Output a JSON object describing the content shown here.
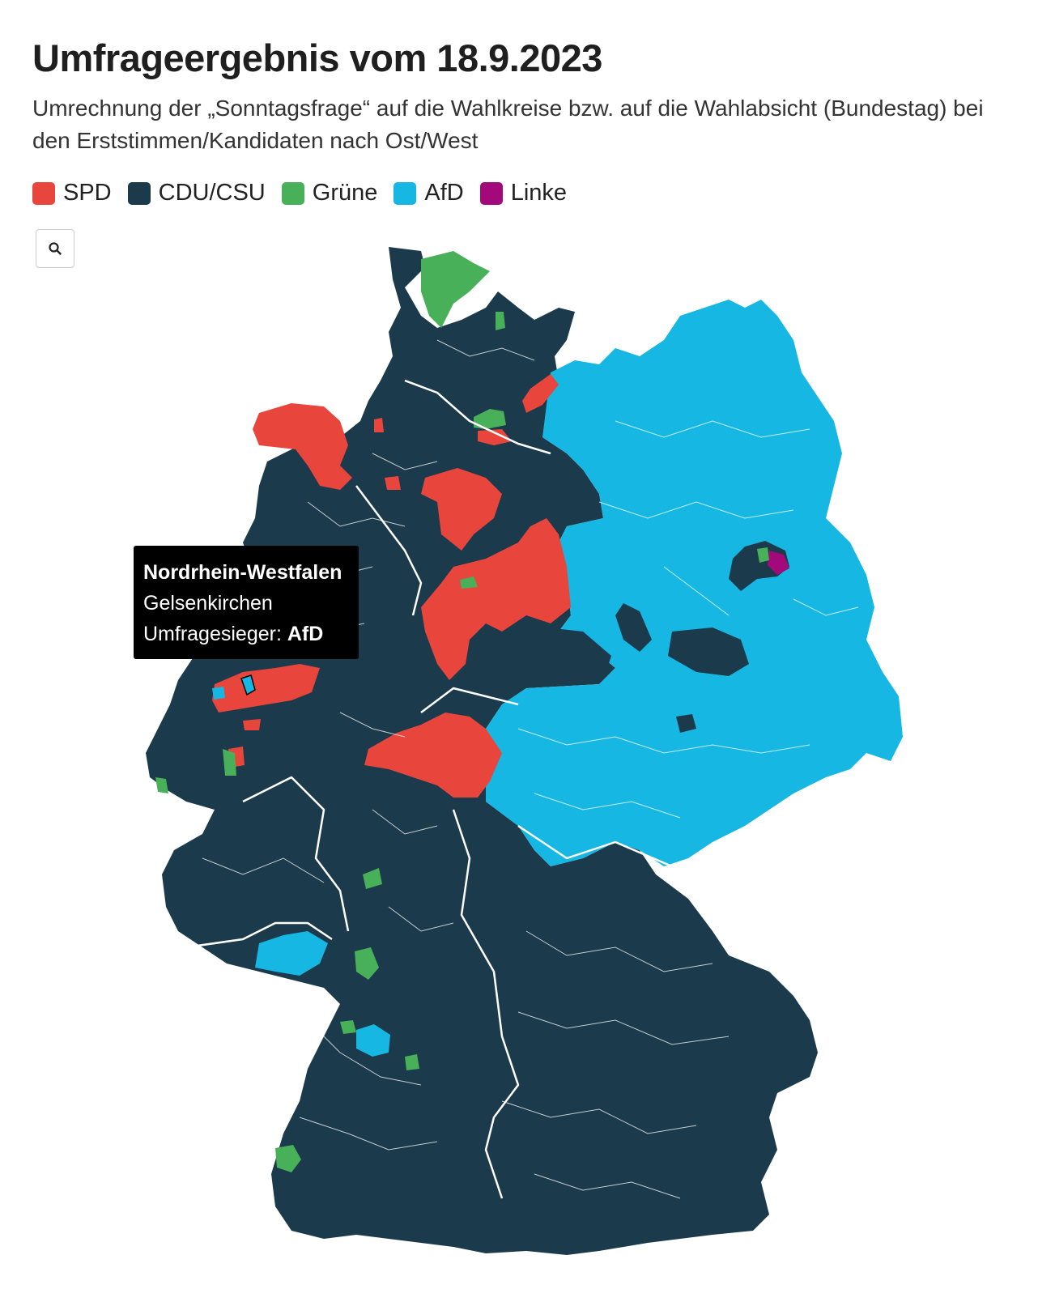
{
  "header": {
    "title": "Umfrageergebnis vom 18.9.2023",
    "subtitle": "Umrechnung der „Sonntagsfrage“ auf die Wahlkreise bzw. auf die Wahlabsicht (Bundestag) bei den Erststimmen/Kandidaten nach Ost/West"
  },
  "legend": [
    {
      "label": "SPD",
      "color": "#e8453c"
    },
    {
      "label": "CDU/CSU",
      "color": "#1b3a4b"
    },
    {
      "label": "Grüne",
      "color": "#49b05a"
    },
    {
      "label": "AfD",
      "color": "#16b7e3"
    },
    {
      "label": "Linke",
      "color": "#a3097a"
    }
  ],
  "zoom": {
    "icon": "search-icon"
  },
  "tooltip": {
    "state": "Nordrhein-Westfalen",
    "district": "Gelsenkirchen",
    "winner_label": "Umfragesieger:",
    "winner": "AfD"
  },
  "map": {
    "colors": {
      "cdu": "#1b3a4b",
      "afd": "#16b7e3",
      "spd": "#e8453c",
      "gruene": "#49b05a",
      "linke": "#a3097a",
      "border": "#ffffff"
    }
  }
}
